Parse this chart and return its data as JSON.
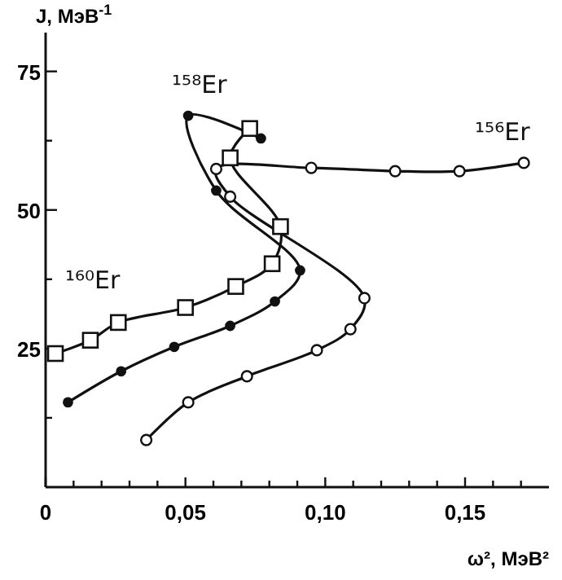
{
  "chart_data": {
    "type": "line",
    "xlabel": "ω², МэВ²",
    "ylabel": "J, МэВ$^{-1}$",
    "xlim": [
      0,
      0.18
    ],
    "ylim": [
      0,
      82
    ],
    "xticks": [
      0,
      {
        "value": 0.01,
        "label": null
      },
      {
        "value": 0.02,
        "label": null
      },
      {
        "value": 0.03,
        "label": null
      },
      {
        "value": 0.04,
        "label": null
      },
      {
        "value": 0.05,
        "label": "0,05"
      },
      {
        "value": 0.06,
        "label": null
      },
      {
        "value": 0.07,
        "label": null
      },
      {
        "value": 0.08,
        "label": null
      },
      {
        "value": 0.09,
        "label": null
      },
      {
        "value": 0.1,
        "label": "0,10"
      },
      {
        "value": 0.11,
        "label": null
      },
      {
        "value": 0.12,
        "label": null
      },
      {
        "value": 0.13,
        "label": null
      },
      {
        "value": 0.14,
        "label": null
      },
      {
        "value": 0.15,
        "label": "0,15"
      },
      {
        "value": 0.16,
        "label": null
      },
      {
        "value": 0.17,
        "label": null
      }
    ],
    "yticks": [
      {
        "value": 12.5,
        "label": null
      },
      25,
      {
        "value": 37.5,
        "label": null
      },
      50,
      {
        "value": 62.5,
        "label": null
      },
      75
    ],
    "grid": false,
    "line_style": "solid",
    "series": [
      {
        "name": "¹⁵⁶Er",
        "color": "#111111",
        "marker": "circle",
        "x": [
          0.036,
          0.051,
          0.072,
          0.097,
          0.109,
          0.114,
          0.066,
          0.061,
          0.095,
          0.125,
          0.148,
          0.171
        ],
        "values": [
          8.5,
          15.3,
          20,
          24.7,
          28.5,
          34.1,
          52.4,
          57.4,
          57.6,
          57,
          57,
          58.5
        ]
      },
      {
        "name": "¹⁵⁸Er",
        "color": "#111111",
        "marker": "circle",
        "x": [
          0.008,
          0.027,
          0.046,
          0.066,
          0.082,
          0.091,
          0.061,
          0.051,
          0.077
        ],
        "values": [
          15.3,
          20.9,
          25.3,
          29.1,
          33.5,
          39.1,
          53.5,
          67,
          62.9
        ]
      },
      {
        "name": "¹⁶⁰Er",
        "color": "#111111",
        "marker": "square",
        "x": [
          0.0035,
          0.016,
          0.026,
          0.05,
          0.068,
          0.081,
          0.084,
          0.066,
          0.073
        ],
        "values": [
          24.1,
          26.5,
          29.7,
          32.4,
          36.2,
          40.3,
          47,
          59.4,
          64.7
        ]
      }
    ]
  }
}
